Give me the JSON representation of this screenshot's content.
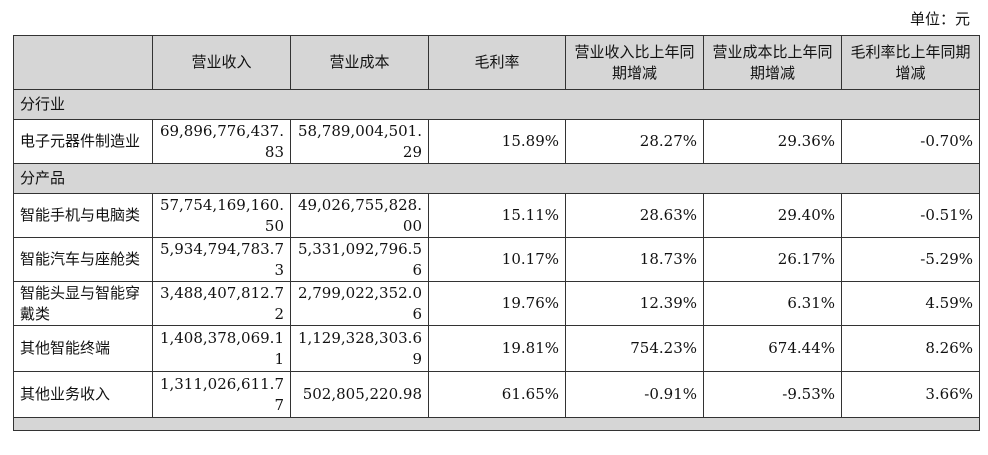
{
  "unit_label": "单位：元",
  "headers": {
    "revenue": "营业收入",
    "cost": "营业成本",
    "margin": "毛利率",
    "revenue_yoy": "营业收入比上年同期增减",
    "cost_yoy": "营业成本比上年同期增减",
    "margin_yoy": "毛利率比上年同期增减"
  },
  "sections": {
    "by_industry": "分行业",
    "by_product": "分产品"
  },
  "rows": [
    {
      "label": "电子元器件制造业",
      "revenue": "69,896,776,437.83",
      "cost": "58,789,004,501.29",
      "margin": "15.89%",
      "revenue_yoy": "28.27%",
      "cost_yoy": "29.36%",
      "margin_yoy": "-0.70%"
    },
    {
      "label": "智能手机与电脑类",
      "revenue": "57,754,169,160.50",
      "cost": "49,026,755,828.00",
      "margin": "15.11%",
      "revenue_yoy": "28.63%",
      "cost_yoy": "29.40%",
      "margin_yoy": "-0.51%"
    },
    {
      "label": "智能汽车与座舱类",
      "revenue": "5,934,794,783.73",
      "cost": "5,331,092,796.56",
      "margin": "10.17%",
      "revenue_yoy": "18.73%",
      "cost_yoy": "26.17%",
      "margin_yoy": "-5.29%"
    },
    {
      "label": "智能头显与智能穿戴类",
      "revenue": "3,488,407,812.72",
      "cost": "2,799,022,352.06",
      "margin": "19.76%",
      "revenue_yoy": "12.39%",
      "cost_yoy": "6.31%",
      "margin_yoy": "4.59%"
    },
    {
      "label": "其他智能终端",
      "revenue": "1,408,378,069.11",
      "cost": "1,129,328,303.69",
      "margin": "19.81%",
      "revenue_yoy": "754.23%",
      "cost_yoy": "674.44%",
      "margin_yoy": "8.26%"
    },
    {
      "label": "其他业务收入",
      "revenue": "1,311,026,611.77",
      "cost": "502,805,220.98",
      "margin": "61.65%",
      "revenue_yoy": "-0.91%",
      "cost_yoy": "-9.53%",
      "margin_yoy": "3.66%"
    }
  ]
}
